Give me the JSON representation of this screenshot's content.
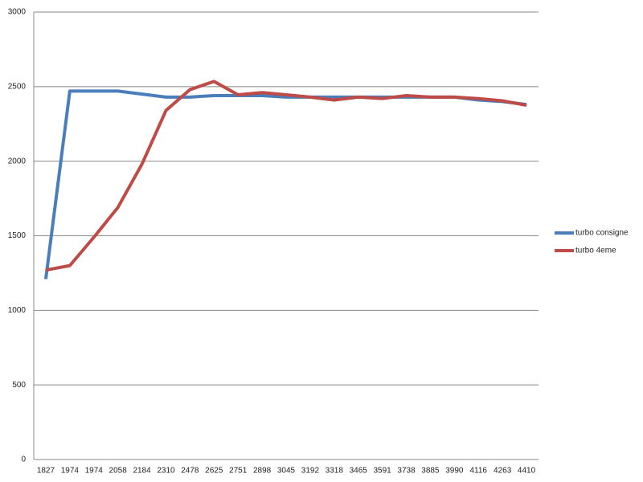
{
  "chart_data": {
    "type": "line",
    "categories": [
      "1827",
      "1974",
      "1974",
      "2058",
      "2184",
      "2310",
      "2478",
      "2625",
      "2751",
      "2898",
      "3045",
      "3192",
      "3318",
      "3465",
      "3591",
      "3738",
      "3885",
      "3990",
      "4116",
      "4263",
      "4410"
    ],
    "series": [
      {
        "name": "turbo consigne",
        "color": "#4a7ebb",
        "values": [
          1210,
          2470,
          2470,
          2470,
          2450,
          2430,
          2430,
          2440,
          2440,
          2440,
          2430,
          2430,
          2430,
          2430,
          2430,
          2430,
          2430,
          2430,
          2410,
          2400,
          2380
        ]
      },
      {
        "name": "turbo 4eme",
        "color": "#be4b48",
        "values": [
          1270,
          1300,
          1490,
          1690,
          1980,
          2340,
          2480,
          2535,
          2445,
          2460,
          2445,
          2430,
          2410,
          2430,
          2420,
          2440,
          2430,
          2430,
          2420,
          2405,
          2375
        ]
      }
    ],
    "ylim": [
      0,
      3000
    ],
    "yticks": [
      0,
      500,
      1000,
      1500,
      2000,
      2500,
      3000
    ],
    "grid": true,
    "legend": "right"
  }
}
